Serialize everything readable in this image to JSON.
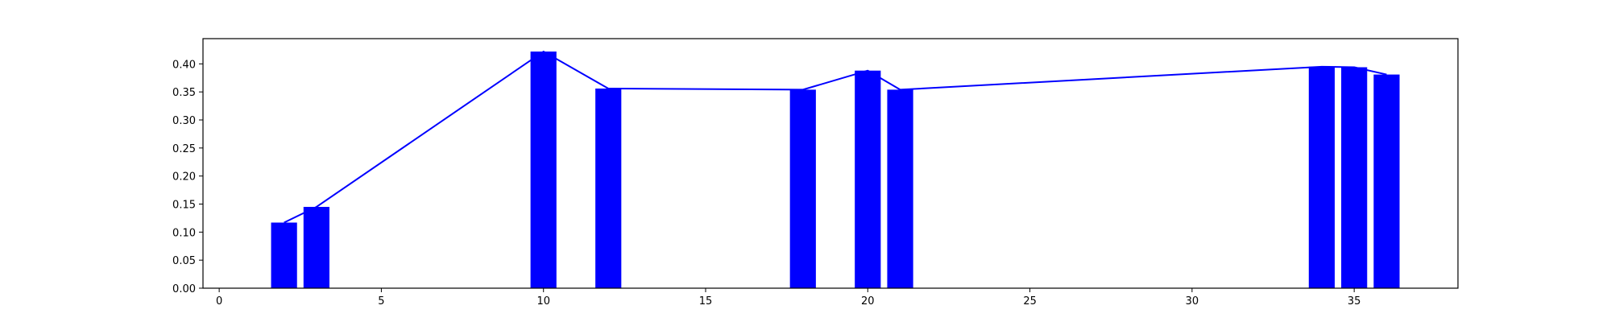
{
  "chart_data": {
    "type": "bar",
    "title": "",
    "xlabel": "",
    "ylabel": "",
    "xlim": [
      -0.5,
      38.2
    ],
    "ylim": [
      0,
      0.445
    ],
    "grid": false,
    "legend": "none",
    "x_ticks": [
      0,
      5,
      10,
      15,
      20,
      25,
      30,
      35
    ],
    "y_ticks": [
      0.0,
      0.05,
      0.1,
      0.15,
      0.2,
      0.25,
      0.3,
      0.35,
      0.4
    ],
    "x_tick_labels": [
      "0",
      "5",
      "10",
      "15",
      "20",
      "25",
      "30",
      "35"
    ],
    "y_tick_labels": [
      "0.00",
      "0.05",
      "0.10",
      "0.15",
      "0.20",
      "0.25",
      "0.30",
      "0.35",
      "0.40"
    ],
    "bar_width": 0.8,
    "bar_color": "#0000ff",
    "line_color": "#0000ff",
    "series": [
      {
        "type": "bar",
        "x": [
          2,
          3,
          10,
          12,
          18,
          20,
          21,
          34,
          35,
          36
        ],
        "values": [
          0.117,
          0.145,
          0.422,
          0.356,
          0.354,
          0.388,
          0.354,
          0.395,
          0.394,
          0.381
        ]
      },
      {
        "type": "line",
        "x": [
          2,
          3,
          10,
          12,
          18,
          20,
          21,
          34,
          35,
          36
        ],
        "values": [
          0.117,
          0.145,
          0.422,
          0.356,
          0.354,
          0.388,
          0.354,
          0.395,
          0.394,
          0.381
        ]
      }
    ]
  }
}
